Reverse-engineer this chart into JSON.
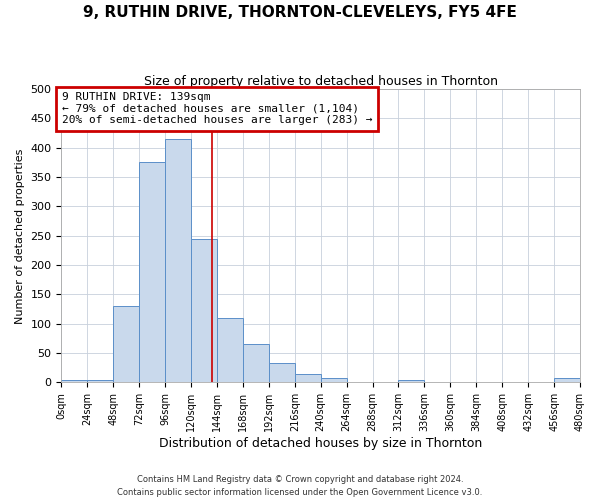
{
  "title": "9, RUTHIN DRIVE, THORNTON-CLEVELEYS, FY5 4FE",
  "subtitle": "Size of property relative to detached houses in Thornton",
  "xlabel": "Distribution of detached houses by size in Thornton",
  "ylabel": "Number of detached properties",
  "bin_edges": [
    0,
    24,
    48,
    72,
    96,
    120,
    144,
    168,
    192,
    216,
    240,
    264,
    288,
    312,
    336,
    360,
    384,
    408,
    432,
    456,
    480
  ],
  "bar_heights": [
    5,
    5,
    130,
    375,
    415,
    245,
    110,
    65,
    33,
    15,
    7,
    0,
    0,
    5,
    0,
    0,
    0,
    0,
    0,
    7
  ],
  "bar_facecolor": "#c9d9ec",
  "bar_edgecolor": "#5b8fc9",
  "vline_x": 139,
  "vline_color": "#cc0000",
  "annotation_title": "9 RUTHIN DRIVE: 139sqm",
  "annotation_line1": "← 79% of detached houses are smaller (1,104)",
  "annotation_line2": "20% of semi-detached houses are larger (283) →",
  "annotation_box_color": "#cc0000",
  "ylim": [
    0,
    500
  ],
  "yticks": [
    0,
    50,
    100,
    150,
    200,
    250,
    300,
    350,
    400,
    450,
    500
  ],
  "xtick_labels": [
    "0sqm",
    "24sqm",
    "48sqm",
    "72sqm",
    "96sqm",
    "120sqm",
    "144sqm",
    "168sqm",
    "192sqm",
    "216sqm",
    "240sqm",
    "264sqm",
    "288sqm",
    "312sqm",
    "336sqm",
    "360sqm",
    "384sqm",
    "408sqm",
    "432sqm",
    "456sqm",
    "480sqm"
  ],
  "footer_line1": "Contains HM Land Registry data © Crown copyright and database right 2024.",
  "footer_line2": "Contains public sector information licensed under the Open Government Licence v3.0.",
  "background_color": "#ffffff",
  "grid_color": "#c8d0dc"
}
